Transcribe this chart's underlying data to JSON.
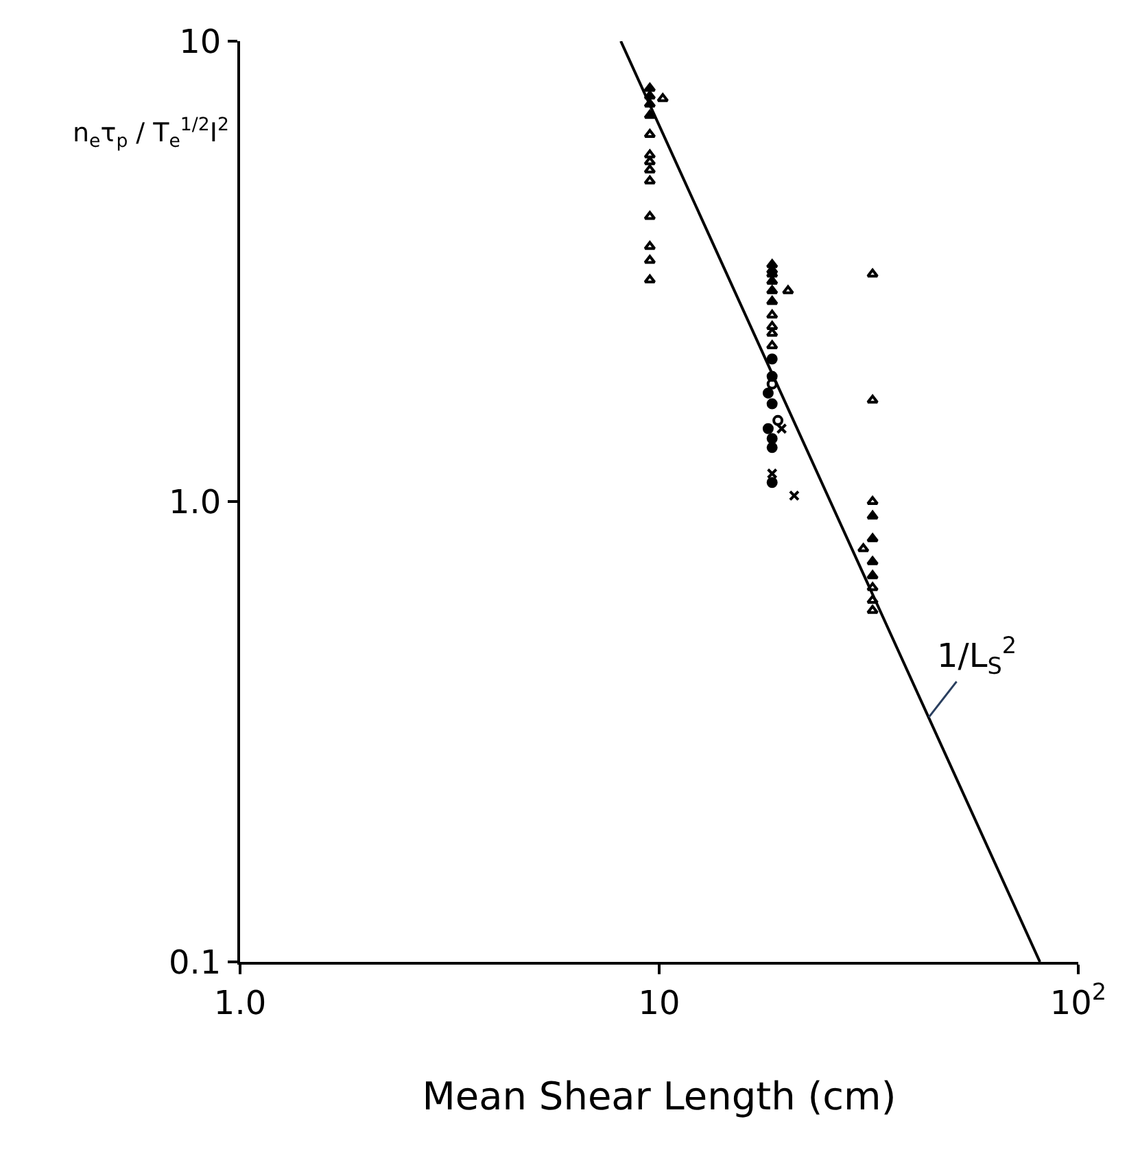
{
  "chart_data": {
    "type": "scatter",
    "xlabel": "Mean Shear Length (cm)",
    "ylabel": "n$_{e}$τ$_{p}$ / T$_{e}$$^{1/2}$I$^{2}$",
    "log": "xy",
    "xlim": [
      1,
      100
    ],
    "xticks": [
      {
        "value": 1,
        "label": "1.0"
      },
      10,
      {
        "value": 100,
        "label": "10$^{2}$"
      }
    ],
    "ylim": [
      0.1,
      10
    ],
    "yticks": [
      0.1,
      {
        "value": 1,
        "label": "1.0"
      },
      10
    ],
    "legend": false,
    "series": [
      {
        "color": "#000000",
        "marker": "triangle",
        "x": [
          9.5,
          9.5,
          9.5,
          9.5,
          18.6,
          18.6,
          18.6,
          18.6,
          18.6,
          18.6,
          32.3,
          32.3,
          32.3,
          32.3
        ],
        "values": [
          7.9,
          7.6,
          7.3,
          6.9,
          3.27,
          3.18,
          3.12,
          3.01,
          2.87,
          2.72,
          0.93,
          0.83,
          0.74,
          0.69
        ]
      },
      {
        "color": "#000000",
        "marker": "triangle-open",
        "x": [
          10.2,
          9.5,
          9.5,
          9.5,
          9.5,
          9.5,
          9.5,
          9.5,
          9.5,
          9.5,
          20.3,
          18.6,
          18.6,
          18.6,
          18.6,
          32.3,
          32.3,
          32.3,
          30.7,
          32.3,
          32.3,
          32.3
        ],
        "values": [
          7.5,
          6.27,
          5.66,
          5.47,
          5.25,
          4.97,
          4.16,
          3.58,
          3.34,
          3.03,
          2.87,
          2.54,
          2.4,
          2.32,
          2.18,
          3.12,
          1.66,
          1.0,
          0.79,
          0.65,
          0.61,
          0.58
        ]
      },
      {
        "color": "#000000",
        "marker": "circle",
        "x": [
          18.6,
          18.6,
          18.2,
          18.6,
          18.2,
          18.6,
          18.6,
          18.6
        ],
        "values": [
          2.04,
          1.87,
          1.72,
          1.63,
          1.44,
          1.37,
          1.31,
          1.1
        ]
      },
      {
        "color": "#000000",
        "marker": "circle-open",
        "x": [
          18.6,
          19.2
        ],
        "values": [
          1.8,
          1.5
        ]
      },
      {
        "color": "#000000",
        "marker": "cross",
        "x": [
          19.6,
          18.6,
          21.0
        ],
        "values": [
          1.44,
          1.15,
          1.03
        ]
      },
      {
        "type": "line",
        "color": "#000000",
        "marker": "none",
        "line_style": "solid",
        "x": [
          8.1,
          81
        ],
        "values": [
          10,
          0.1
        ]
      }
    ],
    "annotations": [
      {
        "text": "1/L$_{S}$$^{2}$",
        "x": 44,
        "y": 0.34
      }
    ]
  }
}
